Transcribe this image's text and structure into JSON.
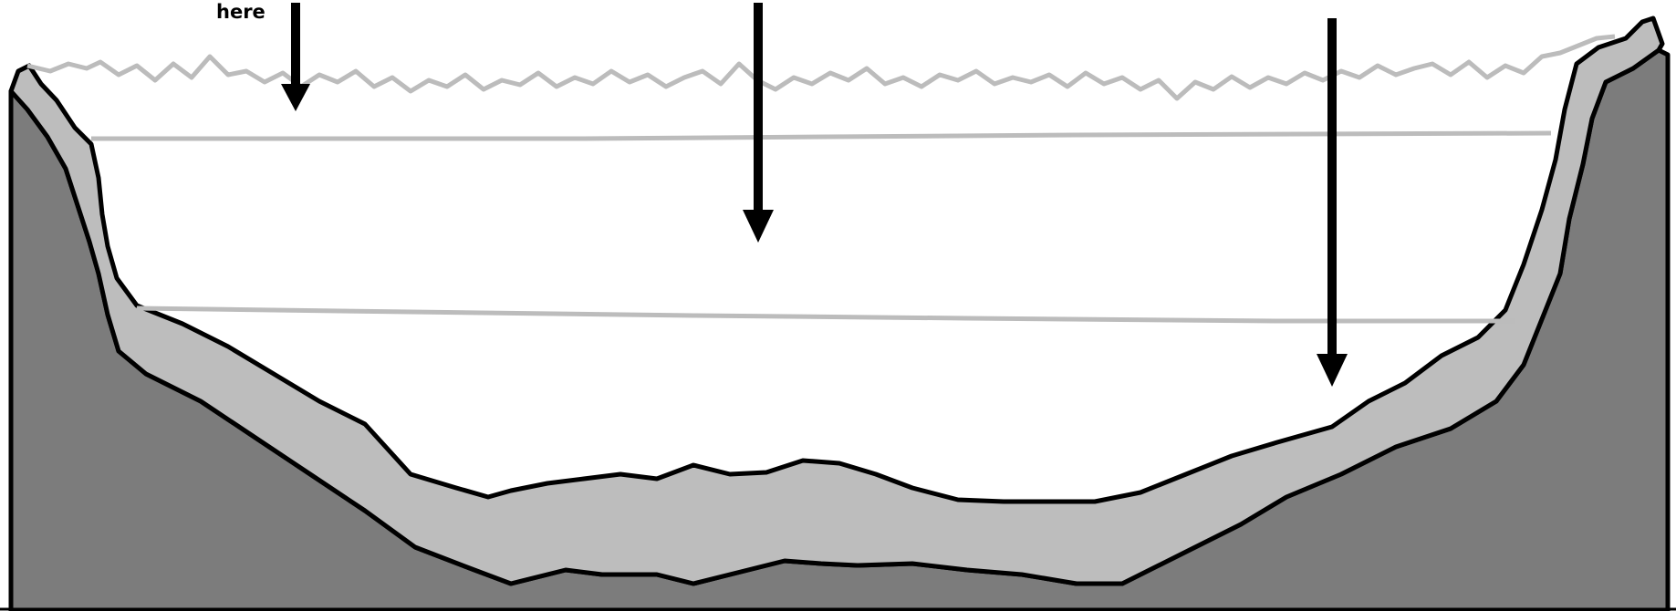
{
  "label": "here",
  "arrows": [
    "arrow-left",
    "arrow-middle",
    "arrow-right"
  ],
  "colors": {
    "rock": "#7c7c7c",
    "sediment": "#bdbdbd",
    "water_lines": "#bcbcbc",
    "outline": "#000000",
    "background": "#ffffff"
  }
}
